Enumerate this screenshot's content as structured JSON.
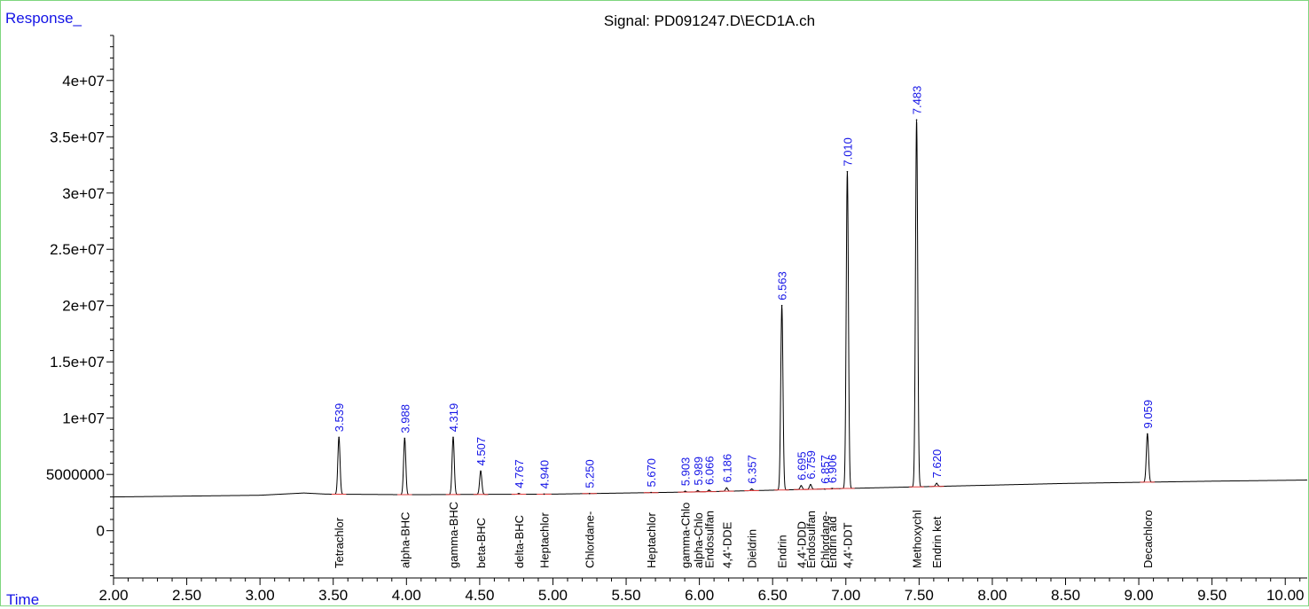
{
  "header": {
    "y_label": "Response_",
    "x_label": "Time",
    "title": "Signal: PD091247.D\\ECD1A.ch"
  },
  "colors": {
    "trace": "#000000",
    "label": "#1414e6",
    "baseline": "#e23c3c",
    "frame": "#7fd67f"
  },
  "chart_data": {
    "type": "line",
    "title": "Signal: PD091247.D\\ECD1A.ch",
    "xlabel": "Time",
    "ylabel": "Response_",
    "xlim": [
      2.0,
      10.15
    ],
    "ylim": [
      -4200000,
      44000000
    ],
    "x_ticks": [
      "2.00",
      "2.50",
      "3.00",
      "3.50",
      "4.00",
      "4.50",
      "5.00",
      "5.50",
      "6.00",
      "6.50",
      "7.00",
      "7.50",
      "8.00",
      "8.50",
      "9.00",
      "9.50",
      "10.00"
    ],
    "y_ticks": [
      "0",
      "5000000",
      "1e+07",
      "1.5e+07",
      "2e+07",
      "2.5e+07",
      "3e+07",
      "3.5e+07",
      "4e+07"
    ],
    "grid": false,
    "baseline": [
      [
        2.0,
        3000000
      ],
      [
        3.0,
        3150000
      ],
      [
        3.3,
        3350000
      ],
      [
        3.45,
        3250000
      ],
      [
        4.0,
        3200000
      ],
      [
        5.0,
        3250000
      ],
      [
        6.0,
        3450000
      ],
      [
        6.5,
        3600000
      ],
      [
        7.0,
        3750000
      ],
      [
        7.5,
        3900000
      ],
      [
        8.0,
        4050000
      ],
      [
        8.5,
        4200000
      ],
      [
        9.0,
        4300000
      ],
      [
        9.5,
        4400000
      ],
      [
        10.15,
        4500000
      ]
    ],
    "peaks": [
      {
        "rt": 3.539,
        "rt_label": "3.539",
        "height": 8300000,
        "name": "Tetrachlor"
      },
      {
        "rt": 3.988,
        "rt_label": "3.988",
        "height": 8200000,
        "name": "alpha-BHC"
      },
      {
        "rt": 4.319,
        "rt_label": "4.319",
        "height": 8300000,
        "name": "gamma-BHC"
      },
      {
        "rt": 4.507,
        "rt_label": "4.507",
        "height": 5300000,
        "name": "beta-BHC"
      },
      {
        "rt": 4.767,
        "rt_label": "4.767",
        "height": 3300000,
        "name": "delta-BHC"
      },
      {
        "rt": 4.94,
        "rt_label": "4.940",
        "height": 3250000,
        "name": "Heptachlor"
      },
      {
        "rt": 5.25,
        "rt_label": "5.250",
        "height": 3300000,
        "name": "Chlordane-"
      },
      {
        "rt": 5.67,
        "rt_label": "5.670",
        "height": 3400000,
        "name": "Heptachlor"
      },
      {
        "rt": 5.903,
        "rt_label": "5.903",
        "height": 3500000,
        "name": "gamma-Chlo"
      },
      {
        "rt": 5.989,
        "rt_label": "5.989",
        "height": 3550000,
        "name": "alpha-Chlo"
      },
      {
        "rt": 6.066,
        "rt_label": "6.066",
        "height": 3600000,
        "name": "Endosulfan"
      },
      {
        "rt": 6.186,
        "rt_label": "6.186",
        "height": 3800000,
        "name": "4,4'-DDE"
      },
      {
        "rt": 6.357,
        "rt_label": "6.357",
        "height": 3700000,
        "name": "Dieldrin"
      },
      {
        "rt": 6.563,
        "rt_label": "6.563",
        "height": 20000000,
        "name": "Endrin"
      },
      {
        "rt": 6.695,
        "rt_label": "6.695",
        "height": 4000000,
        "name": "4,4'-DDD"
      },
      {
        "rt": 6.759,
        "rt_label": "6.759",
        "height": 4100000,
        "name": "Endosulfan"
      },
      {
        "rt": 6.857,
        "rt_label": "6.857",
        "height": 3700000,
        "name": "Chlordane-"
      },
      {
        "rt": 6.906,
        "rt_label": "6.906",
        "height": 3750000,
        "name": "Endrin ald"
      },
      {
        "rt": 7.01,
        "rt_label": "7.010",
        "height": 31900000,
        "name": "4,4'-DDT"
      },
      {
        "rt": 7.483,
        "rt_label": "7.483",
        "height": 36500000,
        "name": "Methoxychl"
      },
      {
        "rt": 7.62,
        "rt_label": "7.620",
        "height": 4200000,
        "name": "Endrin ket"
      },
      {
        "rt": 9.059,
        "rt_label": "9.059",
        "height": 8600000,
        "name": "Decachloro"
      }
    ]
  }
}
